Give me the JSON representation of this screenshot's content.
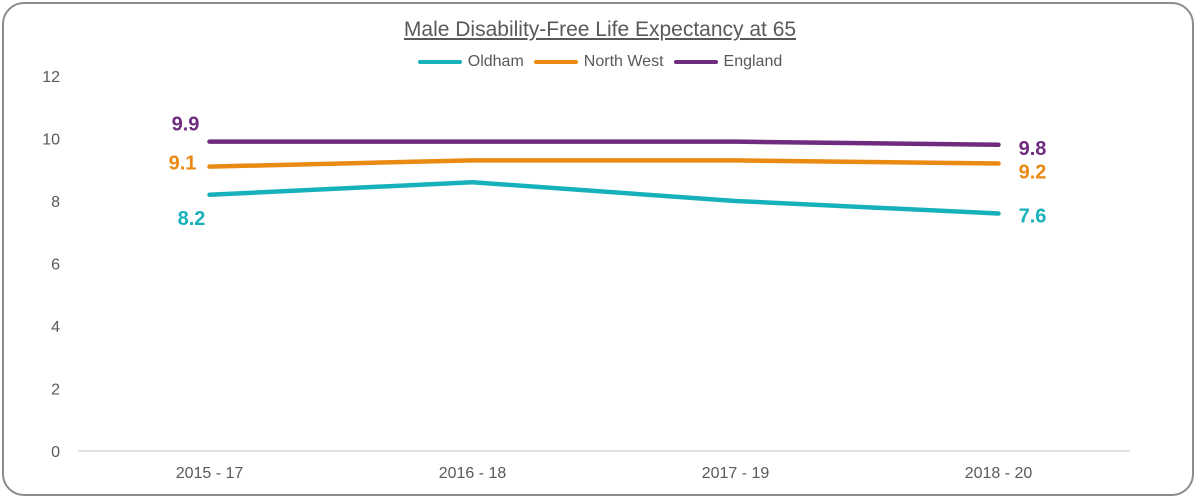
{
  "chart_data": {
    "type": "line",
    "title": "Male Disability-Free Life Expectancy at 65",
    "categories": [
      "2015 - 17",
      "2016 - 18",
      "2017 - 19",
      "2018 - 20"
    ],
    "ylim": [
      0,
      12
    ],
    "yticks": [
      0,
      2,
      4,
      6,
      8,
      10,
      12
    ],
    "legend_position": "top",
    "grid": false,
    "series": [
      {
        "name": "Oldham",
        "color": "#17b1bb",
        "values": [
          8.2,
          8.6,
          8.0,
          7.6
        ],
        "labels": [
          "8.2",
          "",
          "",
          "7.6"
        ]
      },
      {
        "name": "North West",
        "color": "#ea8a12",
        "values": [
          9.1,
          9.3,
          9.3,
          9.2
        ],
        "labels": [
          "9.1",
          "",
          "",
          "9.2"
        ]
      },
      {
        "name": "England",
        "color": "#6f2c7e",
        "values": [
          9.9,
          9.9,
          9.9,
          9.8
        ],
        "labels": [
          "9.9",
          "",
          "",
          "9.8"
        ]
      }
    ]
  }
}
